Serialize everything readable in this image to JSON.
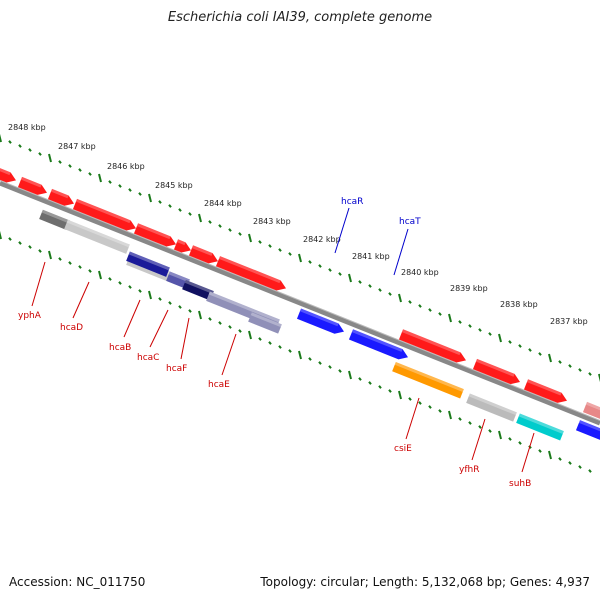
{
  "title": "Escherichia coli IAI39, complete genome",
  "accession": "Accession: NC_011750",
  "stats": "Topology: circular; Length: 5,132,068 bp; Genes: 4,937",
  "colors": {
    "backbone": "#888888",
    "tick": "#1a7a1a",
    "label_red": "#cc0000",
    "label_blue": "#0000cc",
    "gene_red": "#ff1a1a",
    "gene_blue": "#1a1aff"
  },
  "ruler_labels": [
    "2848 kbp",
    "2847 kbp",
    "2846 kbp",
    "2845 kbp",
    "2844 kbp",
    "2843 kbp",
    "2842 kbp",
    "2841 kbp",
    "2840 kbp",
    "2839 kbp",
    "2838 kbp",
    "2837 kbp"
  ],
  "features": [
    {
      "name": "yphA",
      "color": "#cc0000",
      "feature_color": "#6e6e6e"
    },
    {
      "name": "hcaD",
      "color": "#cc0000",
      "feature_color": "#c8c8c8"
    },
    {
      "name": "hcaB",
      "color": "#cc0000",
      "feature_color": "#1a1a99"
    },
    {
      "name": "hcaC",
      "color": "#cc0000",
      "feature_color": "#5555aa"
    },
    {
      "name": "hcaF",
      "color": "#cc0000",
      "feature_color": "#101060"
    },
    {
      "name": "hcaE",
      "color": "#cc0000",
      "feature_color": "#9090b8"
    },
    {
      "name": "hcaR",
      "color": "#0000cc",
      "feature_color": "#1a1aff"
    },
    {
      "name": "hcaT",
      "color": "#0000cc",
      "feature_color": "#1a1aff"
    },
    {
      "name": "csiE",
      "color": "#cc0000",
      "feature_color": "#ff9900"
    },
    {
      "name": "yfhR",
      "color": "#cc0000",
      "feature_color": "#bbbbbb"
    },
    {
      "name": "suhB",
      "color": "#cc0000",
      "feature_color": "#00cccc"
    }
  ]
}
